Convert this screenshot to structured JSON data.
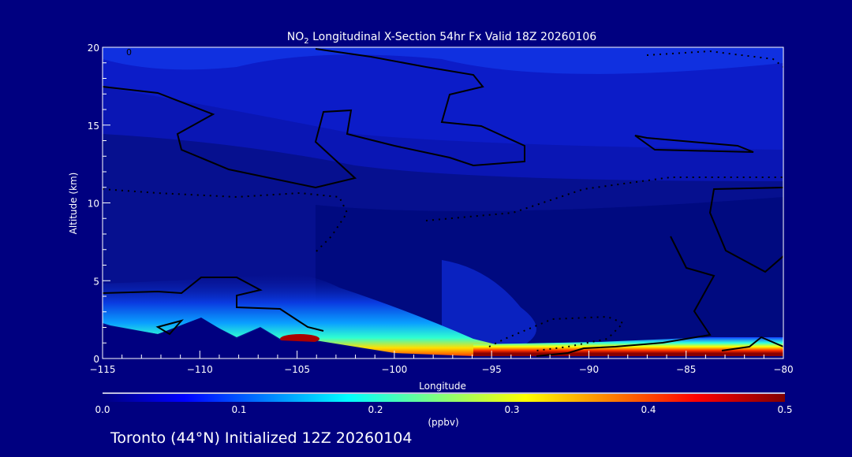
{
  "chart_data": {
    "type": "heatmap",
    "title_prefix": "NO",
    "title_subscript": "2",
    "title_suffix": " Longitudinal X-Section 54hr  Fx Valid 18Z 20260106",
    "xlabel": "Longitude",
    "ylabel": "Altitude (km)",
    "xlim": [
      -115,
      -80
    ],
    "ylim": [
      0,
      20
    ],
    "xticks": [
      -115,
      -110,
      -105,
      -100,
      -95,
      -90,
      -85,
      -80
    ],
    "xtick_labels": [
      "−115",
      "−110",
      "−105",
      "−100",
      "−95",
      "−90",
      "−85",
      "−80"
    ],
    "yticks": [
      0,
      5,
      10,
      15,
      20
    ],
    "ytick_labels": [
      "0",
      "5",
      "10",
      "15",
      "20"
    ],
    "colorbar": {
      "label": "(ppbv)",
      "range": [
        0.0,
        0.5
      ],
      "ticks": [
        0.0,
        0.1,
        0.2,
        0.3,
        0.4,
        0.5
      ],
      "tick_labels": [
        "0.0",
        "0.1",
        "0.2",
        "0.3",
        "0.4",
        "0.5"
      ],
      "colormap": [
        "#00007f",
        "#0000ff",
        "#00ffff",
        "#ffff00",
        "#ff0000",
        "#7f0000"
      ]
    },
    "contour_labels": [
      "0"
    ],
    "features": [
      {
        "desc": "high NO2 (>0.5) near surface",
        "lon_range": [
          -96,
          -80
        ],
        "alt_range": [
          0.3,
          1.0
        ]
      },
      {
        "desc": "elevated NO2 over terrain",
        "lon_range": [
          -115,
          -97
        ],
        "alt_range": [
          1.2,
          4.5
        ]
      }
    ]
  },
  "footer": "Toronto (44°N) Initialized 12Z 20260104"
}
